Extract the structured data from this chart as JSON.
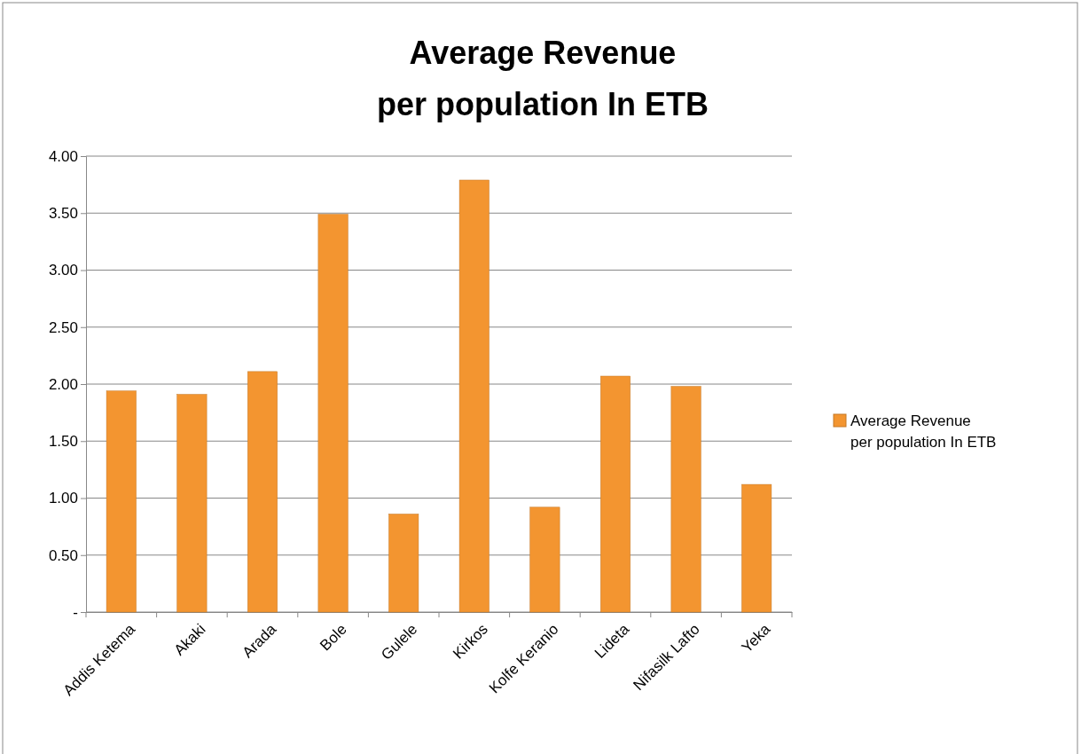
{
  "chart_data": {
    "type": "bar",
    "title": "Average Revenue\nper population In ETB",
    "categories": [
      "Addis Ketema",
      "Akaki",
      "Arada",
      "Bole",
      "Gulele",
      "Kirkos",
      "Kolfe Keranio",
      "Lideta",
      "Nifasilk Lafto",
      "Yeka"
    ],
    "series": [
      {
        "name": "Average Revenue\nper population In ETB",
        "color": "#f39530",
        "values": [
          1.94,
          1.91,
          2.11,
          3.49,
          0.86,
          3.79,
          0.92,
          2.07,
          1.98,
          1.12
        ]
      }
    ],
    "ylim": [
      0,
      4
    ],
    "yticks": [
      {
        "value": 0,
        "label": "-"
      },
      {
        "value": 0.5,
        "label": "0.50"
      },
      {
        "value": 1,
        "label": "1.00"
      },
      {
        "value": 1.5,
        "label": "1.50"
      },
      {
        "value": 2,
        "label": "2.00"
      },
      {
        "value": 2.5,
        "label": "2.50"
      },
      {
        "value": 3,
        "label": "3.00"
      },
      {
        "value": 3.5,
        "label": "3.50"
      },
      {
        "value": 4,
        "label": "4.00"
      }
    ],
    "grid": "y",
    "legend": "right"
  }
}
